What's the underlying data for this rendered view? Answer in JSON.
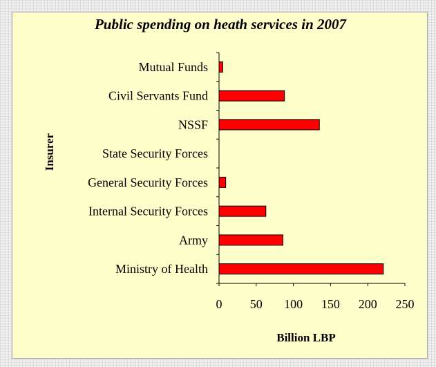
{
  "chart_data": {
    "type": "bar",
    "orientation": "horizontal",
    "title": "Public spending on heath services in 2007",
    "xlabel": "Billion LBP",
    "ylabel": "Insurer",
    "categories": [
      "Mutual Funds",
      "Civil Servants Fund",
      "NSSF",
      "State Security Forces",
      "General Security Forces",
      "Internal Security Forces",
      "Army",
      "Ministry of Health"
    ],
    "values": [
      5,
      88,
      135,
      0,
      9,
      63,
      86,
      221
    ],
    "xlim": [
      0,
      250
    ],
    "xticks": [
      0,
      50,
      100,
      150,
      200,
      250
    ],
    "grid": false,
    "legend": "none",
    "bar_color": "#ff0000",
    "background_color": "#ffffcc"
  }
}
